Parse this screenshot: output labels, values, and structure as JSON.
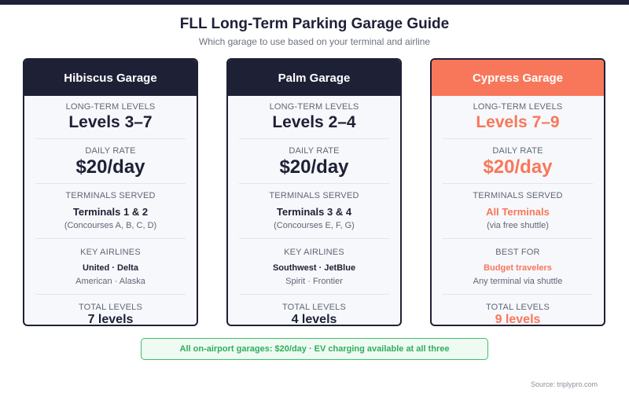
{
  "title": "FLL Long-Term Parking Garage Guide",
  "subtitle": "Which garage to use based on your terminal and airline",
  "colors": {
    "dark": "#1e2036",
    "accent": "#f8775a",
    "green": "#2fae5a"
  },
  "labels": {
    "levels": "LONG-TERM LEVELS",
    "rate": "DAILY RATE",
    "terminals": "TERMINALS SERVED",
    "airlines": "KEY AIRLINES",
    "best_for": "BEST FOR",
    "total": "TOTAL LEVELS"
  },
  "garages": [
    {
      "name": "Hibiscus Garage",
      "levels": "Levels 3–7",
      "rate": "$20/day",
      "terminals": "Terminals 1 & 2",
      "terminals_note": "(Concourses A, B, C, D)",
      "airlines_main": "United · Delta",
      "airlines_sub": "American · Alaska",
      "total": "7 levels"
    },
    {
      "name": "Palm Garage",
      "levels": "Levels 2–4",
      "rate": "$20/day",
      "terminals": "Terminals 3 & 4",
      "terminals_note": "(Concourses E, F, G)",
      "airlines_main": "Southwest · JetBlue",
      "airlines_sub": "Spirit · Frontier",
      "total": "4 levels"
    },
    {
      "name": "Cypress Garage",
      "levels": "Levels 7–9",
      "rate": "$20/day",
      "terminals": "All Terminals",
      "terminals_note": "(via free shuttle)",
      "airlines_main": "Budget travelers",
      "airlines_sub": "Any terminal via shuttle",
      "total": "9 levels"
    }
  ],
  "footer_note": "All on-airport garages: $20/day · EV charging available at all three",
  "source": "Source: triplypro.com"
}
